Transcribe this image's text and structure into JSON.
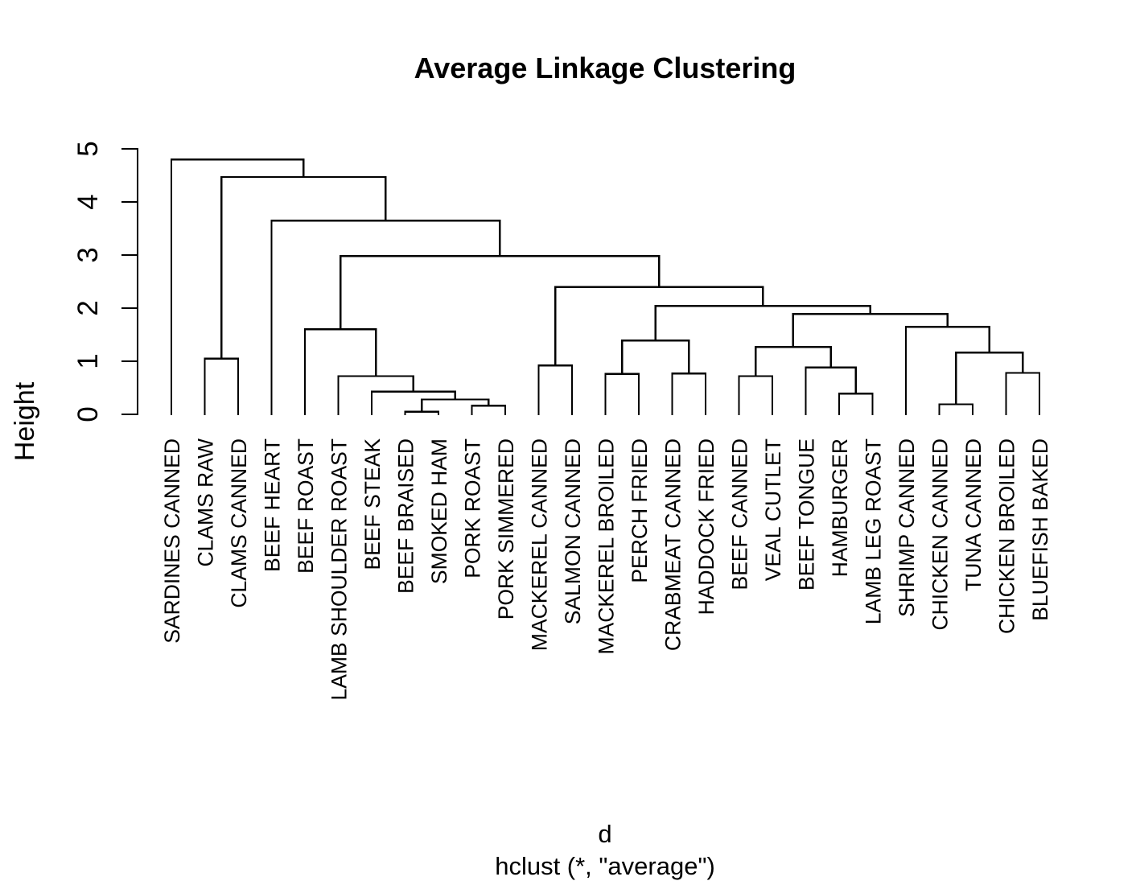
{
  "figure": {
    "title": "Average Linkage Clustering",
    "y_axis_label": "Height",
    "x_axis_label": "d",
    "x_axis_sublabel": "hclust (*, \"average\")"
  },
  "chart_data": {
    "type": "dendrogram",
    "title": "Average Linkage Clustering",
    "ylabel": "Height",
    "xlabel": "d",
    "method_caption": "hclust (*, \"average\")",
    "orientation": "vertical",
    "grid": false,
    "line_color": "#000000",
    "background_color": "#ffffff",
    "ylim": [
      0,
      5
    ],
    "y_ticks": [
      0,
      1,
      2,
      3,
      4,
      5
    ],
    "y_tick_labels": [
      "0",
      "1",
      "2",
      "3",
      "4",
      "5"
    ],
    "leaves": [
      "SARDINES CANNED",
      "CLAMS RAW",
      "CLAMS CANNED",
      "BEEF HEART",
      "BEEF ROAST",
      "LAMB SHOULDER ROAST",
      "BEEF STEAK",
      "BEEF BRAISED",
      "SMOKED HAM",
      "PORK ROAST",
      "PORK SIMMERED",
      "MACKEREL CANNED",
      "SALMON CANNED",
      "MACKEREL BROILED",
      "PERCH FRIED",
      "CRABMEAT CANNED",
      "HADDOCK FRIED",
      "BEEF CANNED",
      "VEAL CUTLET",
      "BEEF TONGUE",
      "HAMBURGER",
      "LAMB LEG ROAST",
      "SHRIMP CANNED",
      "CHICKEN CANNED",
      "TUNA CANNED",
      "CHICKEN BROILED",
      "BLUEFISH BAKED"
    ],
    "tree": {
      "h": 4.8,
      "c": [
        0,
        {
          "h": 4.47,
          "c": [
            {
              "h": 1.05,
              "c": [
                1,
                2
              ]
            },
            {
              "h": 3.65,
              "c": [
                3,
                {
                  "h": 2.98,
                  "c": [
                    {
                      "h": 1.6,
                      "c": [
                        4,
                        {
                          "h": 0.72,
                          "c": [
                            5,
                            {
                              "h": 0.43,
                              "c": [
                                6,
                                {
                                  "h": 0.28,
                                  "c": [
                                    {
                                      "h": 0.05,
                                      "c": [
                                        7,
                                        8
                                      ]
                                    },
                                    {
                                      "h": 0.16,
                                      "c": [
                                        9,
                                        10
                                      ]
                                    }
                                  ]
                                }
                              ]
                            }
                          ]
                        }
                      ]
                    },
                    {
                      "h": 2.4,
                      "c": [
                        {
                          "h": 0.92,
                          "c": [
                            11,
                            12
                          ]
                        },
                        {
                          "h": 2.04,
                          "c": [
                            {
                              "h": 1.39,
                              "c": [
                                {
                                  "h": 0.76,
                                  "c": [
                                    13,
                                    14
                                  ]
                                },
                                {
                                  "h": 0.77,
                                  "c": [
                                    15,
                                    16
                                  ]
                                }
                              ]
                            },
                            {
                              "h": 1.89,
                              "c": [
                                {
                                  "h": 1.27,
                                  "c": [
                                    {
                                      "h": 0.72,
                                      "c": [
                                        17,
                                        18
                                      ]
                                    },
                                    {
                                      "h": 0.88,
                                      "c": [
                                        19,
                                        {
                                          "h": 0.39,
                                          "c": [
                                            20,
                                            21
                                          ]
                                        }
                                      ]
                                    }
                                  ]
                                },
                                {
                                  "h": 1.65,
                                  "c": [
                                    22,
                                    {
                                      "h": 1.16,
                                      "c": [
                                        {
                                          "h": 0.19,
                                          "c": [
                                            23,
                                            24
                                          ]
                                        },
                                        {
                                          "h": 0.78,
                                          "c": [
                                            25,
                                            26
                                          ]
                                        }
                                      ]
                                    }
                                  ]
                                }
                              ]
                            }
                          ]
                        }
                      ]
                    }
                  ]
                }
              ]
            }
          ]
        }
      ]
    }
  }
}
